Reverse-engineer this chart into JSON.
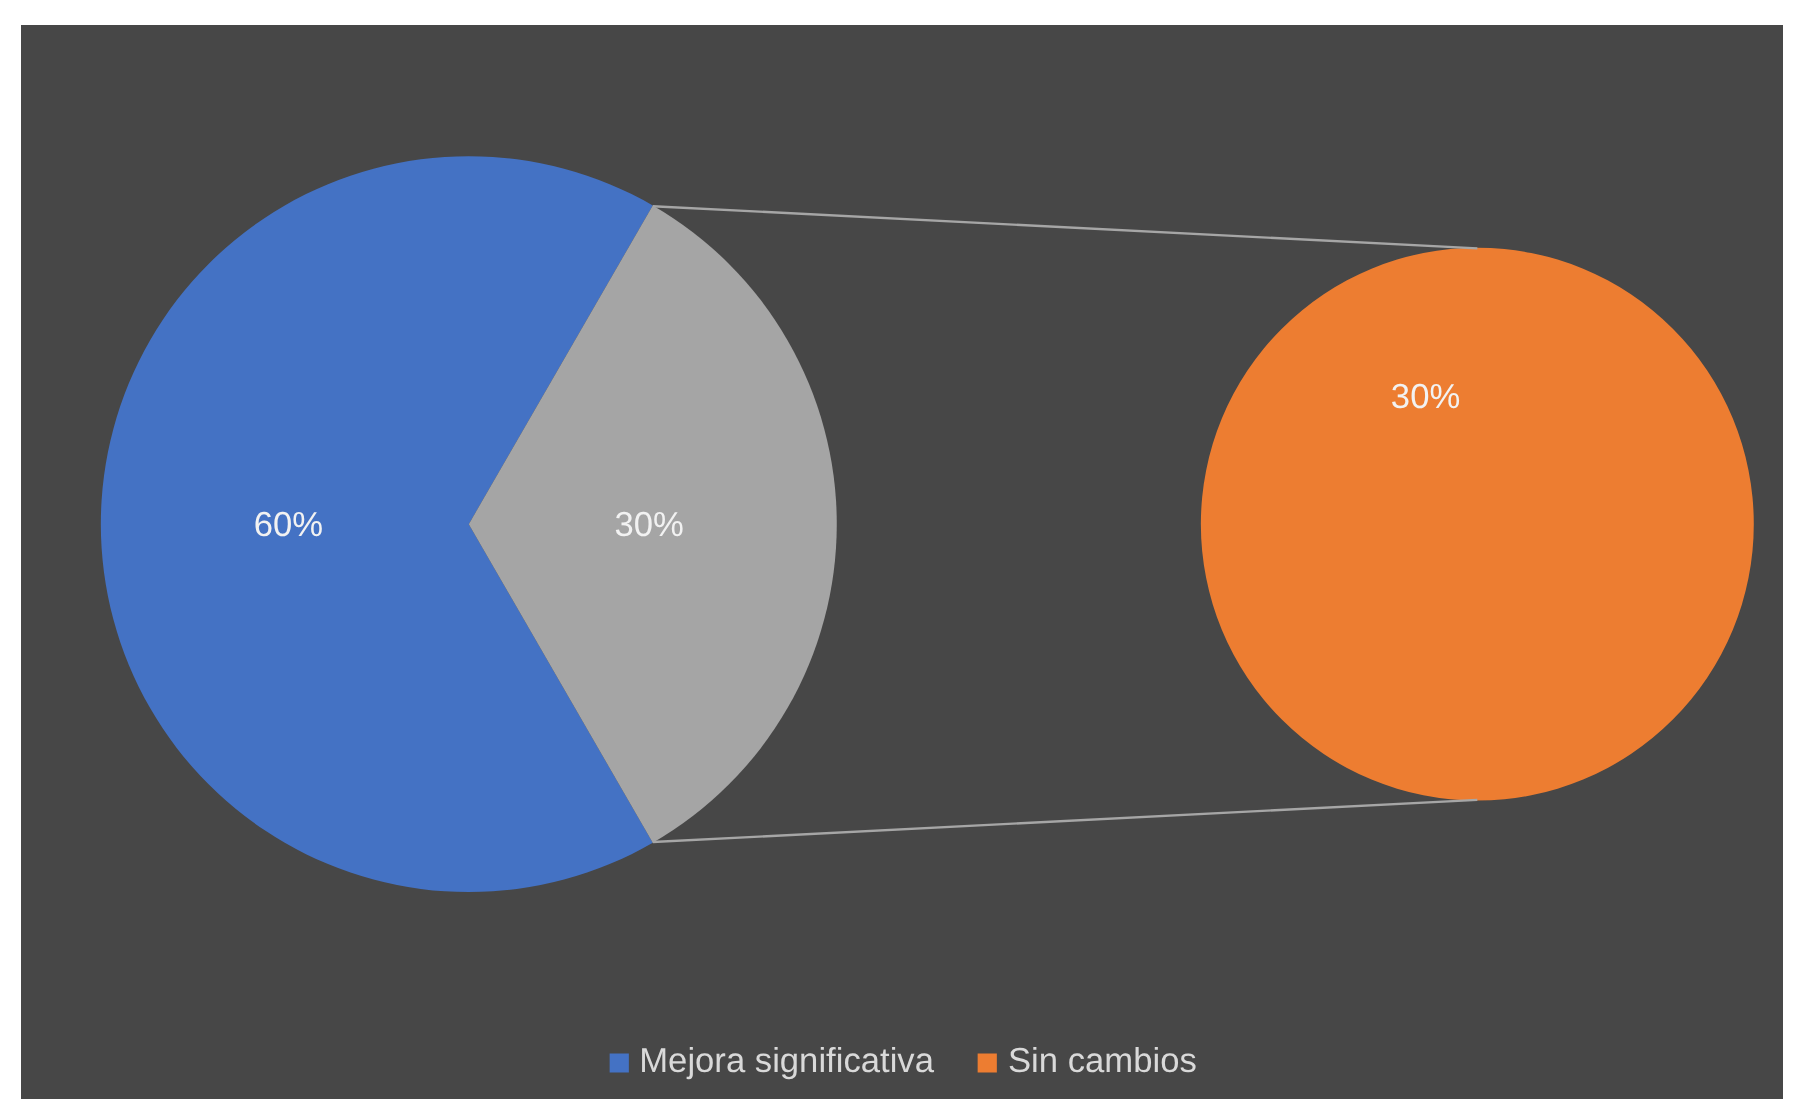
{
  "chart_data": [
    {
      "type": "pie",
      "categories": [
        "Mejora significativa",
        null
      ],
      "values": [
        60,
        30
      ],
      "colors": [
        "#4472c4",
        "#a5a5a5"
      ],
      "value_labels": [
        "60%",
        "30%"
      ],
      "legend": "bottom"
    },
    {
      "type": "pie",
      "categories": [
        "Sin cambios"
      ],
      "values": [
        30
      ],
      "colors": [
        "#ed7d31"
      ],
      "value_labels": [
        "30%"
      ],
      "legend": "bottom"
    }
  ]
}
